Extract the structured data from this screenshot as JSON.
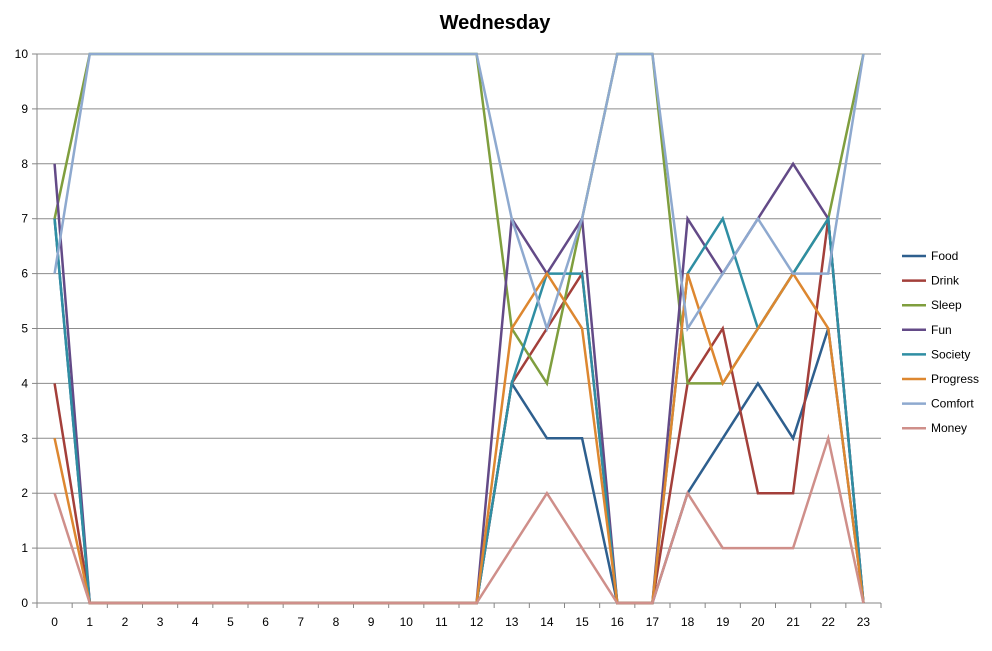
{
  "chart_data": {
    "type": "line",
    "title": "Wednesday",
    "xlabel": "",
    "ylabel": "",
    "x": [
      0,
      1,
      2,
      3,
      4,
      5,
      6,
      7,
      8,
      9,
      10,
      11,
      12,
      13,
      14,
      15,
      16,
      17,
      18,
      19,
      20,
      21,
      22,
      23
    ],
    "ylim": [
      0,
      10
    ],
    "yticks": [
      0,
      1,
      2,
      3,
      4,
      5,
      6,
      7,
      8,
      9,
      10
    ],
    "grid": true,
    "legend_position": "right",
    "series": [
      {
        "name": "Food",
        "color": "#2e5f8e",
        "values": [
          7,
          0,
          0,
          0,
          0,
          0,
          0,
          0,
          0,
          0,
          0,
          0,
          0,
          4,
          3,
          3,
          0,
          0,
          2,
          3,
          4,
          3,
          5,
          0
        ]
      },
      {
        "name": "Drink",
        "color": "#a33f3a",
        "values": [
          4,
          0,
          0,
          0,
          0,
          0,
          0,
          0,
          0,
          0,
          0,
          0,
          0,
          4,
          5,
          6,
          0,
          0,
          4,
          5,
          2,
          2,
          7,
          0
        ]
      },
      {
        "name": "Sleep",
        "color": "#7f9e3e",
        "values": [
          7,
          10,
          10,
          10,
          10,
          10,
          10,
          10,
          10,
          10,
          10,
          10,
          10,
          5,
          4,
          7,
          10,
          10,
          4,
          4,
          5,
          6,
          7,
          10
        ]
      },
      {
        "name": "Fun",
        "color": "#634a87",
        "values": [
          8,
          0,
          0,
          0,
          0,
          0,
          0,
          0,
          0,
          0,
          0,
          0,
          0,
          7,
          6,
          7,
          0,
          0,
          7,
          6,
          7,
          8,
          7,
          0
        ]
      },
      {
        "name": "Society",
        "color": "#2f8ea3",
        "values": [
          7,
          0,
          0,
          0,
          0,
          0,
          0,
          0,
          0,
          0,
          0,
          0,
          0,
          4,
          6,
          6,
          0,
          0,
          6,
          7,
          5,
          6,
          7,
          0
        ]
      },
      {
        "name": "Progress",
        "color": "#dd8730",
        "values": [
          3,
          0,
          0,
          0,
          0,
          0,
          0,
          0,
          0,
          0,
          0,
          0,
          0,
          5,
          6,
          5,
          0,
          0,
          6,
          4,
          5,
          6,
          5,
          0
        ]
      },
      {
        "name": "Comfort",
        "color": "#8ea9cf",
        "values": [
          6,
          10,
          10,
          10,
          10,
          10,
          10,
          10,
          10,
          10,
          10,
          10,
          10,
          7,
          5,
          7,
          10,
          10,
          5,
          6,
          7,
          6,
          6,
          10
        ]
      },
      {
        "name": "Money",
        "color": "#cf8f8a",
        "values": [
          2,
          0,
          0,
          0,
          0,
          0,
          0,
          0,
          0,
          0,
          0,
          0,
          0,
          1,
          2,
          1,
          0,
          0,
          2,
          1,
          1,
          1,
          3,
          0
        ]
      }
    ]
  }
}
